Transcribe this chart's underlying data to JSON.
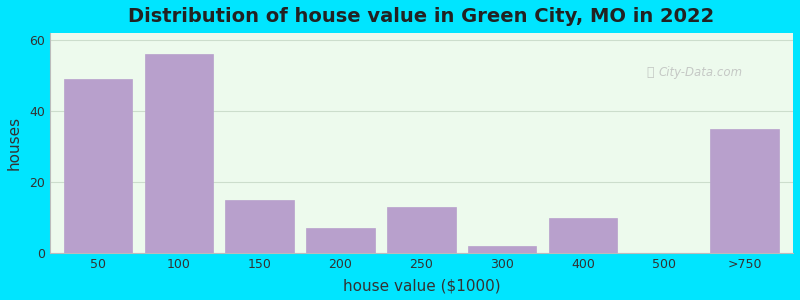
{
  "title": "Distribution of house value in Green City, MO in 2022",
  "xlabel": "house value ($1000)",
  "ylabel": "houses",
  "categories": [
    "50",
    "100",
    "150",
    "200",
    "250",
    "300",
    "400",
    "500",
    ">750"
  ],
  "values": [
    49,
    56,
    15,
    7,
    13,
    2,
    10,
    0,
    35
  ],
  "bar_color": "#b8a0cc",
  "ylim": [
    0,
    62
  ],
  "yticks": [
    0,
    20,
    40,
    60
  ],
  "bg_outer": "#00e5ff",
  "bg_plot": "#edfaed",
  "grid_color": "#ccddcc",
  "title_fontsize": 14,
  "axis_label_fontsize": 11,
  "tick_fontsize": 9,
  "watermark_text": "City-Data.com"
}
